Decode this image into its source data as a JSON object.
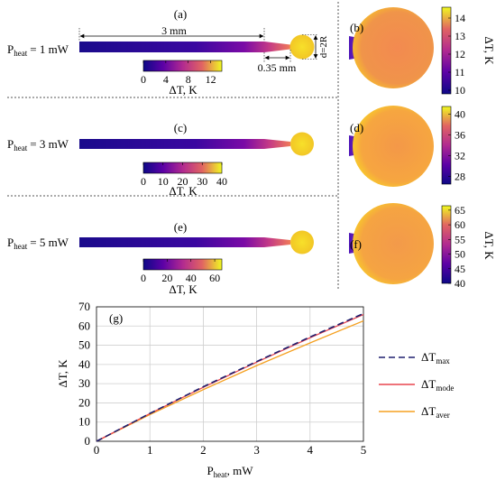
{
  "panels": {
    "a": {
      "label": "(a)",
      "p_heat_text": "= 1 mW",
      "length_label": "3 mm",
      "tip_label": "0.35 mm",
      "diameter_label": "d=2R",
      "colorbar": {
        "ticks": [
          "0",
          "4",
          "8",
          "12"
        ],
        "tick_values": [
          0,
          4,
          8,
          12
        ],
        "min": 0,
        "max": 14,
        "label": "ΔT, K"
      }
    },
    "b": {
      "label": "(b)",
      "colorbar": {
        "ticks": [
          "14",
          "13",
          "12",
          "11",
          "10"
        ],
        "tick_values": [
          14,
          13,
          12,
          11,
          10
        ],
        "min": 9.8,
        "max": 14.6,
        "label": "ΔT, K"
      }
    },
    "c": {
      "label": "(c)",
      "p_heat_text": "= 3 mW",
      "colorbar": {
        "ticks": [
          "0",
          "10",
          "20",
          "30",
          "40"
        ],
        "tick_values": [
          0,
          10,
          20,
          30,
          40
        ],
        "min": 0,
        "max": 40,
        "label": "ΔT, K"
      }
    },
    "d": {
      "label": "(d)",
      "colorbar": {
        "ticks": [
          "40",
          "36",
          "32",
          "28"
        ],
        "tick_values": [
          40,
          36,
          32,
          28
        ],
        "min": 26.5,
        "max": 41.5
      }
    },
    "e": {
      "label": "(e)",
      "p_heat_text": "= 5 mW",
      "colorbar": {
        "ticks": [
          "0",
          "20",
          "40",
          "60"
        ],
        "tick_values": [
          0,
          20,
          40,
          60
        ],
        "min": 0,
        "max": 66,
        "label": "ΔT, K"
      }
    },
    "f": {
      "label": "(f)",
      "colorbar": {
        "ticks": [
          "65",
          "60",
          "55",
          "50",
          "45",
          "40"
        ],
        "tick_values": [
          65,
          60,
          55,
          50,
          45,
          40
        ],
        "min": 40,
        "max": 66.5,
        "label": "ΔT, K"
      }
    }
  },
  "p_heat_prefix": "P",
  "p_heat_sub": "heat",
  "chart_data": {
    "type": "line",
    "panel_label": "(g)",
    "xlabel_main": "P",
    "xlabel_sub": "heat",
    "xlabel_unit": ", mW",
    "ylabel": "ΔT, K",
    "xlim": [
      0,
      5
    ],
    "ylim": [
      0,
      70
    ],
    "xticks": [
      0,
      1,
      2,
      3,
      4,
      5
    ],
    "yticks": [
      0,
      10,
      20,
      30,
      40,
      50,
      60,
      70
    ],
    "grid": true,
    "legend_position": "right",
    "series": [
      {
        "name_main": "ΔT",
        "name_sub": "max",
        "color": "#1f1f6e",
        "dash": "dashed",
        "x": [
          0,
          1,
          2,
          3,
          4,
          5
        ],
        "y": [
          0,
          14.5,
          28.4,
          41.5,
          54.3,
          66.5
        ]
      },
      {
        "name_main": "ΔT",
        "name_sub": "mode",
        "color": "#e8454f",
        "dash": "solid",
        "x": [
          0,
          1,
          2,
          3,
          4,
          5
        ],
        "y": [
          0,
          14.4,
          28.1,
          41.2,
          53.9,
          66.0
        ]
      },
      {
        "name_main": "ΔT",
        "name_sub": "aver",
        "color": "#f5a020",
        "dash": "solid",
        "x": [
          0,
          1,
          2,
          3,
          4,
          5
        ],
        "y": [
          0,
          13.9,
          26.9,
          39.4,
          51.2,
          62.7
        ]
      }
    ]
  }
}
